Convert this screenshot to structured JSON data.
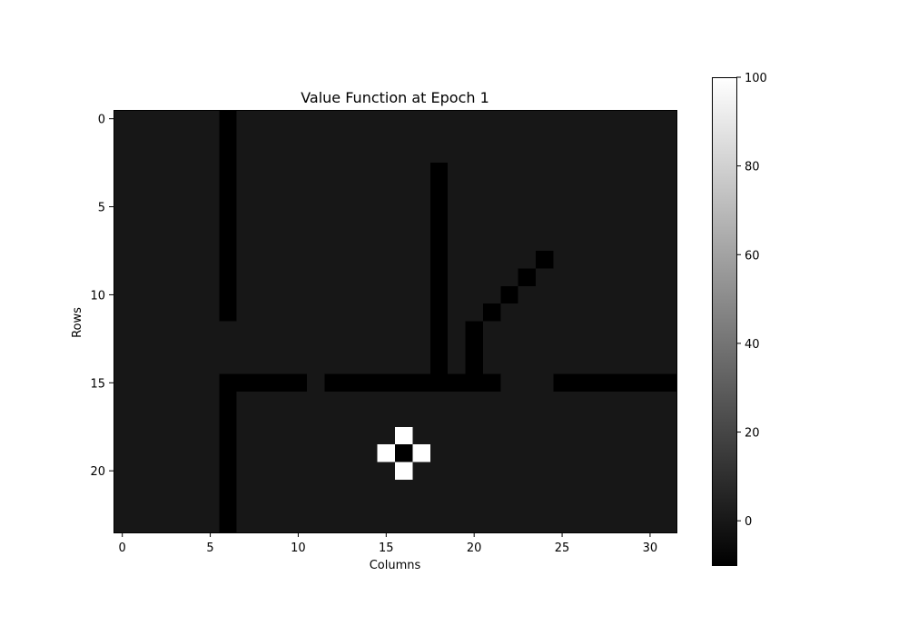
{
  "chart_data": {
    "type": "heatmap",
    "title": "Value Function at Epoch 1",
    "xlabel": "Columns",
    "ylabel": "Rows",
    "n_rows": 24,
    "n_cols": 32,
    "x_ticks": [
      0,
      5,
      10,
      15,
      20,
      25,
      30
    ],
    "y_ticks": [
      0,
      5,
      10,
      15,
      20
    ],
    "colormap": "gray",
    "vmin": -10,
    "vmax": 100,
    "colorbar_ticks": [
      0,
      20,
      40,
      60,
      80,
      100
    ],
    "background_value": 0,
    "wall_value": -10,
    "goal_value": 100,
    "walls": [
      [
        0,
        6
      ],
      [
        1,
        6
      ],
      [
        2,
        6
      ],
      [
        3,
        6
      ],
      [
        4,
        6
      ],
      [
        5,
        6
      ],
      [
        6,
        6
      ],
      [
        7,
        6
      ],
      [
        8,
        6
      ],
      [
        9,
        6
      ],
      [
        10,
        6
      ],
      [
        11,
        6
      ],
      [
        3,
        18
      ],
      [
        4,
        18
      ],
      [
        5,
        18
      ],
      [
        6,
        18
      ],
      [
        7,
        18
      ],
      [
        8,
        18
      ],
      [
        9,
        18
      ],
      [
        10,
        18
      ],
      [
        11,
        18
      ],
      [
        12,
        18
      ],
      [
        13,
        18
      ],
      [
        14,
        18
      ],
      [
        8,
        24
      ],
      [
        9,
        23
      ],
      [
        10,
        22
      ],
      [
        11,
        21
      ],
      [
        12,
        20
      ],
      [
        13,
        20
      ],
      [
        14,
        20
      ],
      [
        15,
        6
      ],
      [
        15,
        7
      ],
      [
        15,
        8
      ],
      [
        15,
        9
      ],
      [
        15,
        10
      ],
      [
        15,
        12
      ],
      [
        15,
        13
      ],
      [
        15,
        14
      ],
      [
        15,
        15
      ],
      [
        15,
        16
      ],
      [
        15,
        17
      ],
      [
        15,
        18
      ],
      [
        15,
        19
      ],
      [
        15,
        20
      ],
      [
        15,
        21
      ],
      [
        15,
        25
      ],
      [
        15,
        26
      ],
      [
        15,
        27
      ],
      [
        15,
        28
      ],
      [
        15,
        29
      ],
      [
        15,
        30
      ],
      [
        15,
        31
      ],
      [
        16,
        6
      ],
      [
        17,
        6
      ],
      [
        18,
        6
      ],
      [
        19,
        6
      ],
      [
        20,
        6
      ],
      [
        21,
        6
      ],
      [
        22,
        6
      ],
      [
        23,
        6
      ],
      [
        19,
        16
      ]
    ],
    "goals": [
      [
        18,
        16
      ],
      [
        19,
        15
      ],
      [
        19,
        17
      ],
      [
        20,
        16
      ]
    ]
  }
}
